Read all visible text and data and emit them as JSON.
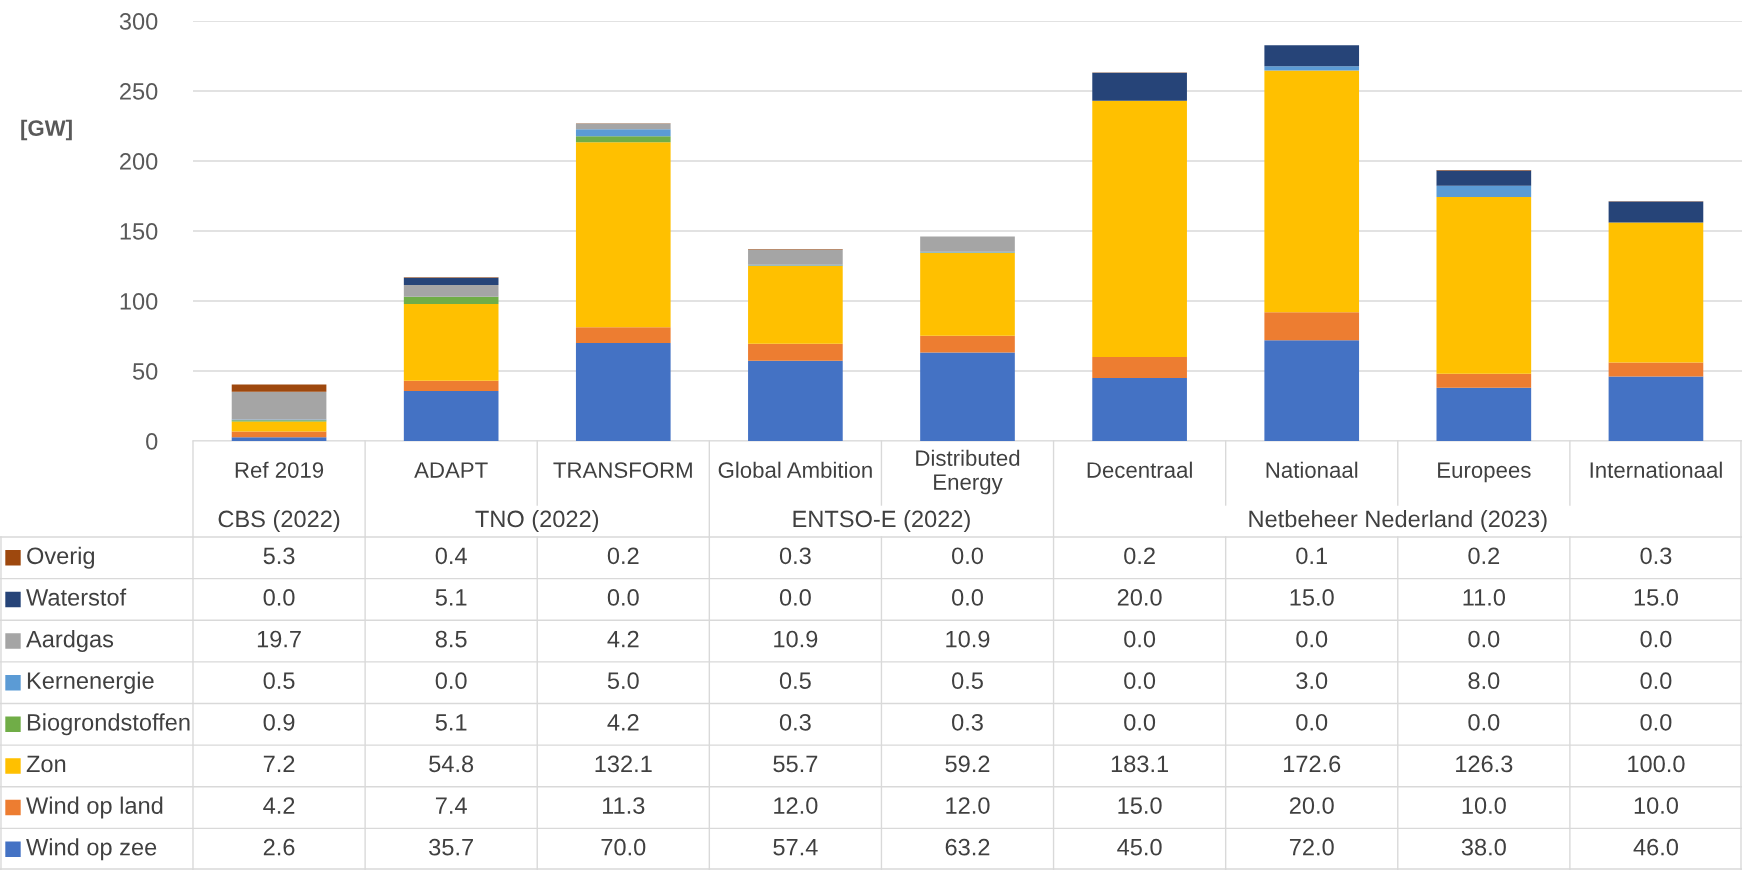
{
  "chart_data": {
    "type": "bar",
    "stacked": true,
    "ylabel": "[GW]",
    "categories": [
      "Ref 2019",
      "ADAPT",
      "TRANSFORM",
      "Global Ambition",
      "Distributed Energy",
      "Decentraal",
      "Nationaal",
      "Europees",
      "Internationaal"
    ],
    "annotations": [
      "CBS (2022)",
      "TNO (2022)",
      "ENTSO-E (2022)",
      "Netbeheer Nederland (2023)"
    ],
    "ylim": [
      0,
      300
    ],
    "yticks": [
      0,
      50,
      100,
      150,
      200,
      250,
      300
    ],
    "grid": "y",
    "legend": "bottom left",
    "series": [
      {
        "name": "Wind op zee",
        "color": "#4472c4",
        "values": [
          2.6,
          35.7,
          70.0,
          57.4,
          63.2,
          45.0,
          72.0,
          38.0,
          46.0
        ],
        "value_labels": [
          "2.6",
          "35.7",
          "70.0",
          "57.4",
          "63.2",
          "45.0",
          "72.0",
          "38.0",
          "46.0"
        ]
      },
      {
        "name": "Wind op land",
        "color": "#ed7d31",
        "values": [
          4.2,
          7.4,
          11.3,
          12.0,
          12.0,
          15.0,
          20.0,
          10.0,
          10.0
        ],
        "value_labels": [
          "4.2",
          "7.4",
          "11.3",
          "12.0",
          "12.0",
          "15.0",
          "20.0",
          "10.0",
          "10.0"
        ]
      },
      {
        "name": "Zon",
        "color": "#ffc000",
        "values": [
          7.2,
          54.8,
          132.1,
          55.7,
          59.2,
          183.1,
          172.6,
          126.3,
          100.0
        ],
        "value_labels": [
          "7.2",
          "54.8",
          "132.1",
          "55.7",
          "59.2",
          "183.1",
          "172.6",
          "126.3",
          "100.0"
        ]
      },
      {
        "name": "Biogrondstoffen",
        "color": "#70ad47",
        "values": [
          0.9,
          5.1,
          4.2,
          0.3,
          0.3,
          0.0,
          0.0,
          0.0,
          0.0
        ],
        "value_labels": [
          "0.9",
          "5.1",
          "4.2",
          "0.3",
          "0.3",
          "0.0",
          "0.0",
          "0.0",
          "0.0"
        ]
      },
      {
        "name": "Kernenergie",
        "color": "#5b9bd5",
        "values": [
          0.5,
          0.0,
          5.0,
          0.5,
          0.5,
          0.0,
          3.0,
          8.0,
          0.0
        ],
        "value_labels": [
          "0.5",
          "0.0",
          "5.0",
          "0.5",
          "0.5",
          "0.0",
          "3.0",
          "8.0",
          "0.0"
        ]
      },
      {
        "name": "Aardgas",
        "color": "#a5a5a5",
        "values": [
          19.7,
          8.5,
          4.2,
          10.9,
          10.9,
          0.0,
          0.0,
          0.0,
          0.0
        ],
        "value_labels": [
          "19.7",
          "8.5",
          "4.2",
          "10.9",
          "10.9",
          "0.0",
          "0.0",
          "0.0",
          "0.0"
        ]
      },
      {
        "name": "Waterstof",
        "color": "#264478",
        "values": [
          0.0,
          5.1,
          0.0,
          0.0,
          0.0,
          20.0,
          15.0,
          11.0,
          15.0
        ],
        "value_labels": [
          "0.0",
          "5.1",
          "0.0",
          "0.0",
          "0.0",
          "20.0",
          "15.0",
          "11.0",
          "15.0"
        ]
      },
      {
        "name": "Overig",
        "color": "#9e480e",
        "values": [
          5.3,
          0.4,
          0.2,
          0.3,
          0.0,
          0.2,
          0.1,
          0.2,
          0.3
        ],
        "value_labels": [
          "5.3",
          "0.4",
          "0.2",
          "0.3",
          "0.0",
          "0.2",
          "0.1",
          "0.2",
          "0.3"
        ]
      }
    ]
  }
}
